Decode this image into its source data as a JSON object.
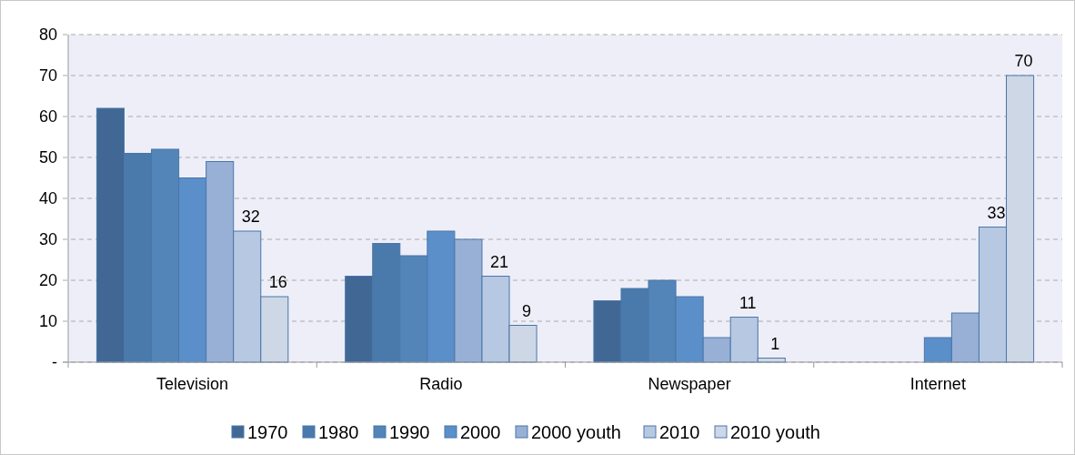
{
  "chart_data": {
    "type": "bar",
    "categories": [
      "Television",
      "Radio",
      "Newspaper",
      "Internet"
    ],
    "series": [
      {
        "name": "1970",
        "color": "#416895",
        "values": [
          62,
          21,
          15,
          null
        ]
      },
      {
        "name": "1980",
        "color": "#4a7aab",
        "values": [
          51,
          29,
          18,
          null
        ]
      },
      {
        "name": "1990",
        "color": "#5385b8",
        "values": [
          52,
          26,
          20,
          null
        ]
      },
      {
        "name": "2000",
        "color": "#5a8fc9",
        "values": [
          45,
          32,
          16,
          6
        ]
      },
      {
        "name": "2000 youth",
        "color": "#98b0d6",
        "values": [
          49,
          30,
          6,
          12
        ]
      },
      {
        "name": "2010",
        "color": "#b7c8e2",
        "values": [
          32,
          21,
          11,
          33
        ],
        "value_labels": [
          "32",
          "21",
          "11",
          "33"
        ]
      },
      {
        "name": "2010 youth",
        "color": "#cdd7e6",
        "values": [
          16,
          9,
          1,
          70
        ],
        "value_labels": [
          "16",
          "9",
          "1",
          "70"
        ]
      }
    ],
    "ylim": [
      0,
      80
    ],
    "yticks": [
      {
        "value": 0,
        "label": "-"
      },
      10,
      20,
      30,
      40,
      50,
      60,
      70,
      80
    ],
    "grid": "y",
    "legend": "bottom"
  }
}
